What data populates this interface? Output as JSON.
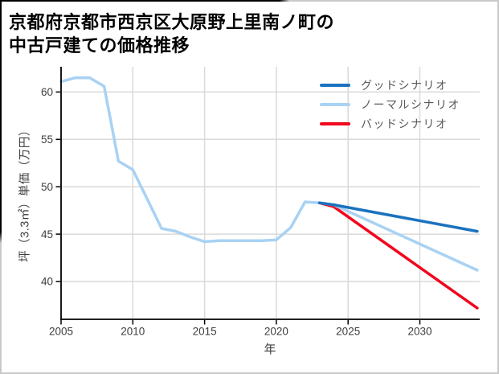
{
  "page": {
    "background": "#ffffff",
    "frame_dark_color": "#000000",
    "frame_light_color": "#c9c9c9"
  },
  "title": {
    "line1": "京都府京都市西京区大原野上里南ノ町の",
    "line2": "中古戸建ての価格推移"
  },
  "legend": {
    "position": "top-right",
    "items": [
      {
        "label": "グッドシナリオ",
        "color": "#1a72be"
      },
      {
        "label": "ノーマルシナリオ",
        "color": "#a8d2f4"
      },
      {
        "label": "バッドシナリオ",
        "color": "#f2051d"
      }
    ]
  },
  "chart_data": {
    "type": "line",
    "xlabel": "年",
    "ylabel": "坪（3.3㎡）単価（万円）",
    "x_ticks": [
      2005,
      2010,
      2015,
      2020,
      2025,
      2030
    ],
    "y_ticks": [
      40,
      45,
      50,
      55,
      60
    ],
    "xlim": [
      2005,
      2034.2
    ],
    "ylim": [
      36,
      62.7
    ],
    "grid": true,
    "grid_color": "#d9d9d9",
    "axis_color": "#000000",
    "tick_label_color": "#3d3d3d",
    "series": [
      {
        "name": "history",
        "color": "#a8d2f4",
        "points": [
          [
            2005,
            61.1
          ],
          [
            2006,
            61.5
          ],
          [
            2007,
            61.5
          ],
          [
            2008,
            60.6
          ],
          [
            2009,
            52.7
          ],
          [
            2010,
            51.8
          ],
          [
            2011,
            48.7
          ],
          [
            2012,
            45.6
          ],
          [
            2013,
            45.3
          ],
          [
            2014,
            44.7
          ],
          [
            2015,
            44.2
          ],
          [
            2016,
            44.3
          ],
          [
            2017,
            44.3
          ],
          [
            2018,
            44.3
          ],
          [
            2019,
            44.3
          ],
          [
            2020,
            44.4
          ],
          [
            2021,
            45.7
          ],
          [
            2022,
            48.4
          ],
          [
            2023,
            48.3
          ]
        ]
      },
      {
        "name": "バッドシナリオ",
        "color": "#f2051d",
        "points": [
          [
            2023,
            48.3
          ],
          [
            2024,
            47.9
          ],
          [
            2034,
            37.2
          ]
        ]
      },
      {
        "name": "ノーマルシナリオ",
        "color": "#a8d2f4",
        "points": [
          [
            2023,
            48.3
          ],
          [
            2024,
            48.1
          ],
          [
            2034,
            41.2
          ]
        ]
      },
      {
        "name": "グッドシナリオ",
        "color": "#1a72be",
        "points": [
          [
            2023,
            48.3
          ],
          [
            2024,
            48.1
          ],
          [
            2034,
            45.3
          ]
        ]
      }
    ]
  }
}
